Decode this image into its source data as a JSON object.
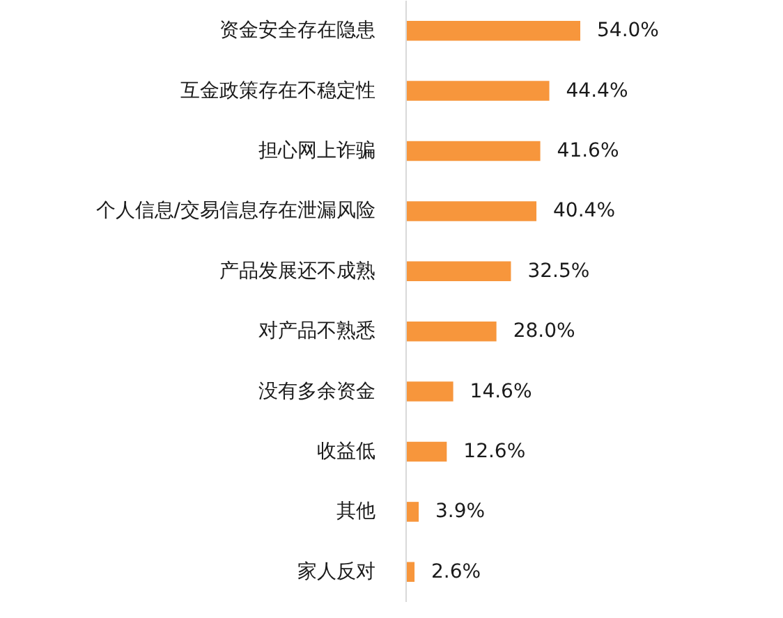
{
  "chart_data": {
    "type": "bar",
    "orientation": "horizontal",
    "categories": [
      "资金安全存在隐患",
      "互金政策存在不稳定性",
      "担心网上诈骗",
      "个人信息/交易信息存在泄漏风险",
      "产品发展还不成熟",
      "对产品不熟悉",
      "没有多余资金",
      "收益低",
      "其他",
      "家人反对"
    ],
    "values": [
      54.0,
      44.4,
      41.6,
      40.4,
      32.5,
      28.0,
      14.6,
      12.6,
      3.9,
      2.6
    ],
    "value_labels": [
      "54.0%",
      "44.4%",
      "41.6%",
      "40.4%",
      "32.5%",
      "28.0%",
      "14.6%",
      "12.6%",
      "3.9%",
      "2.6%"
    ],
    "color": "#f7963c"
  }
}
